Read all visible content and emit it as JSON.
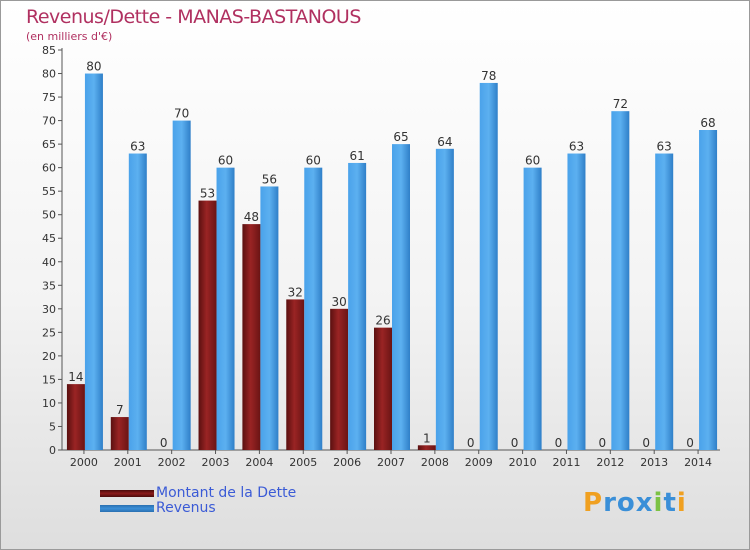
{
  "title": "Revenus/Dette - MANAS-BASTANOUS",
  "subtitle": "(en milliers d'€)",
  "colors": {
    "dette": "#8b1a1a",
    "revenus": "#3a8fd8",
    "title": "#b03060",
    "legend_text": "#3b5bd6"
  },
  "logo": {
    "letters": [
      "P",
      "r",
      "o",
      "x",
      "i",
      "t",
      "i"
    ],
    "letter_colors": [
      "#f0a020",
      "#3a8fd8",
      "#3a8fd8",
      "#3a8fd8",
      "#7cc243",
      "#3a8fd8",
      "#f0a020"
    ]
  },
  "chart_data": {
    "type": "bar",
    "title": "Revenus/Dette - MANAS-BASTANOUS",
    "ylabel": "(en milliers d'€)",
    "ylim": [
      0,
      85
    ],
    "yticks": [
      0,
      5,
      10,
      15,
      20,
      25,
      30,
      35,
      40,
      45,
      50,
      55,
      60,
      65,
      70,
      75,
      80,
      85
    ],
    "grid": false,
    "legend_position": "bottom-left",
    "categories": [
      "2000",
      "2001",
      "2002",
      "2003",
      "2004",
      "2005",
      "2006",
      "2007",
      "2008",
      "2009",
      "2010",
      "2011",
      "2012",
      "2013",
      "2014"
    ],
    "series": [
      {
        "name": "Montant de la Dette",
        "values": [
          14,
          7,
          0,
          53,
          48,
          32,
          30,
          26,
          1,
          0,
          0,
          0,
          0,
          0,
          0
        ]
      },
      {
        "name": "Revenus",
        "values": [
          80,
          63,
          70,
          60,
          56,
          60,
          61,
          65,
          64,
          78,
          60,
          63,
          72,
          63,
          68
        ]
      }
    ]
  }
}
